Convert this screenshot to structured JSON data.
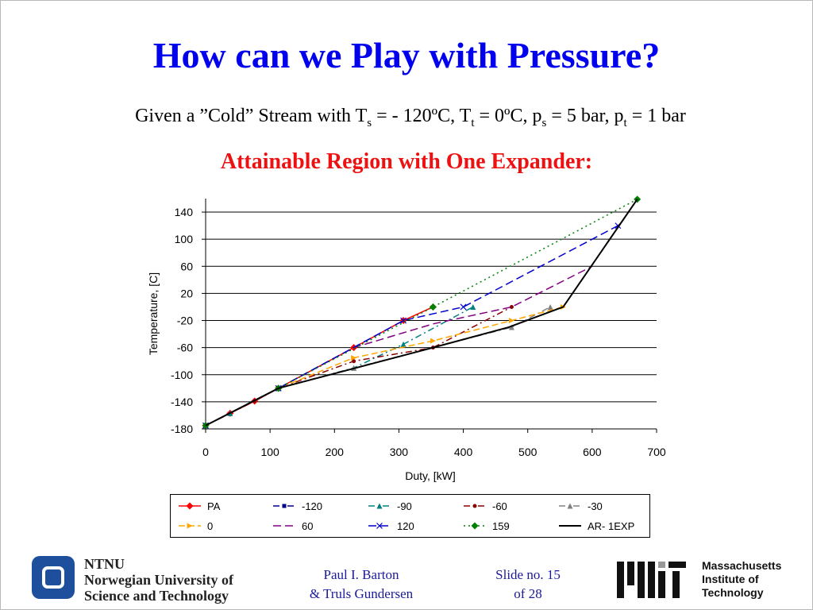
{
  "slide": {
    "title": "How can we Play with Pressure?",
    "subtitle": {
      "p1": "Given a ”Cold” Stream with T",
      "s1": "s",
      "p2": " = - 120ºC, T",
      "s2": "t",
      "p3": " = 0ºC, p",
      "s3": "s",
      "p4": " = 5 bar, p",
      "s4": "t",
      "p5": " = 1 bar"
    },
    "heading": "Attainable Region with One Expander:"
  },
  "chart_data": {
    "type": "line",
    "xlabel": "Duty, [kW]",
    "ylabel": "Temperature, [C]",
    "xlim": [
      0,
      700
    ],
    "ylim": [
      -180,
      160
    ],
    "xticks": [
      0,
      100,
      200,
      300,
      400,
      500,
      600,
      700
    ],
    "yticks": [
      -180,
      -140,
      -100,
      -60,
      -20,
      20,
      60,
      100,
      140
    ],
    "grid": "horizontal",
    "legend_position": "bottom",
    "series": [
      {
        "name": "PA",
        "color": "#ff0000",
        "dash": "",
        "marker": "diamond",
        "x": [
          0,
          38,
          76,
          113,
          230,
          307,
          353
        ],
        "y": [
          -175,
          -157,
          -139,
          -120,
          -60,
          -20,
          0
        ]
      },
      {
        "name": "-120",
        "color": "#00008b",
        "dash": "8,4,2,4",
        "marker": "square",
        "x": [
          0,
          113
        ],
        "y": [
          -175,
          -120
        ]
      },
      {
        "name": "-90",
        "color": "#008080",
        "dash": "8,4,2,4",
        "marker": "triangle",
        "x": [
          0,
          38,
          113,
          230,
          307,
          415
        ],
        "y": [
          -175,
          -157,
          -120,
          -90,
          -55,
          0
        ]
      },
      {
        "name": "-60",
        "color": "#8b0000",
        "dash": "8,4,2,4",
        "marker": "circle",
        "x": [
          0,
          76,
          113,
          230,
          353,
          475
        ],
        "y": [
          -175,
          -139,
          -120,
          -80,
          -60,
          0
        ]
      },
      {
        "name": "-30",
        "color": "#808080",
        "dash": "8,4,2,4",
        "marker": "triangle",
        "x": [
          0,
          113,
          230,
          475,
          535
        ],
        "y": [
          -175,
          -120,
          -90,
          -30,
          0
        ]
      },
      {
        "name": "0",
        "color": "#ffa500",
        "dash": "8,4",
        "marker": "arrow",
        "x": [
          0,
          113,
          230,
          353,
          475,
          555
        ],
        "y": [
          -175,
          -120,
          -75,
          -50,
          -20,
          0
        ]
      },
      {
        "name": "60",
        "color": "#800080",
        "dash": "10,5",
        "marker": "none",
        "x": [
          0,
          113,
          230,
          353,
          475,
          600
        ],
        "y": [
          -175,
          -120,
          -60,
          -25,
          0,
          60
        ]
      },
      {
        "name": "120",
        "color": "#0000cc",
        "dash": "10,5",
        "marker": "x",
        "x": [
          0,
          113,
          307,
          400,
          640
        ],
        "y": [
          -175,
          -120,
          -20,
          0,
          120
        ]
      },
      {
        "name": "159",
        "color": "#008000",
        "dash": "2,4",
        "marker": "diamond",
        "x": [
          0,
          113,
          353,
          670
        ],
        "y": [
          -175,
          -120,
          0,
          159
        ]
      },
      {
        "name": "AR- 1EXP",
        "color": "#000000",
        "dash": "",
        "marker": "none",
        "x": [
          0,
          113,
          353,
          470,
          555,
          670
        ],
        "y": [
          -175,
          -120,
          -60,
          -30,
          0,
          159
        ]
      }
    ]
  },
  "footer": {
    "ntnu_line1": "NTNU",
    "ntnu_line2": "Norwegian University of",
    "ntnu_line3": "Science and Technology",
    "author_line1": "Paul I. Barton",
    "author_line2": "& Truls Gundersen",
    "slide_line1": "Slide no. 15",
    "slide_line2": "of 28",
    "mit_line1": "Massachusetts",
    "mit_line2": "Institute of",
    "mit_line3": "Technology"
  }
}
